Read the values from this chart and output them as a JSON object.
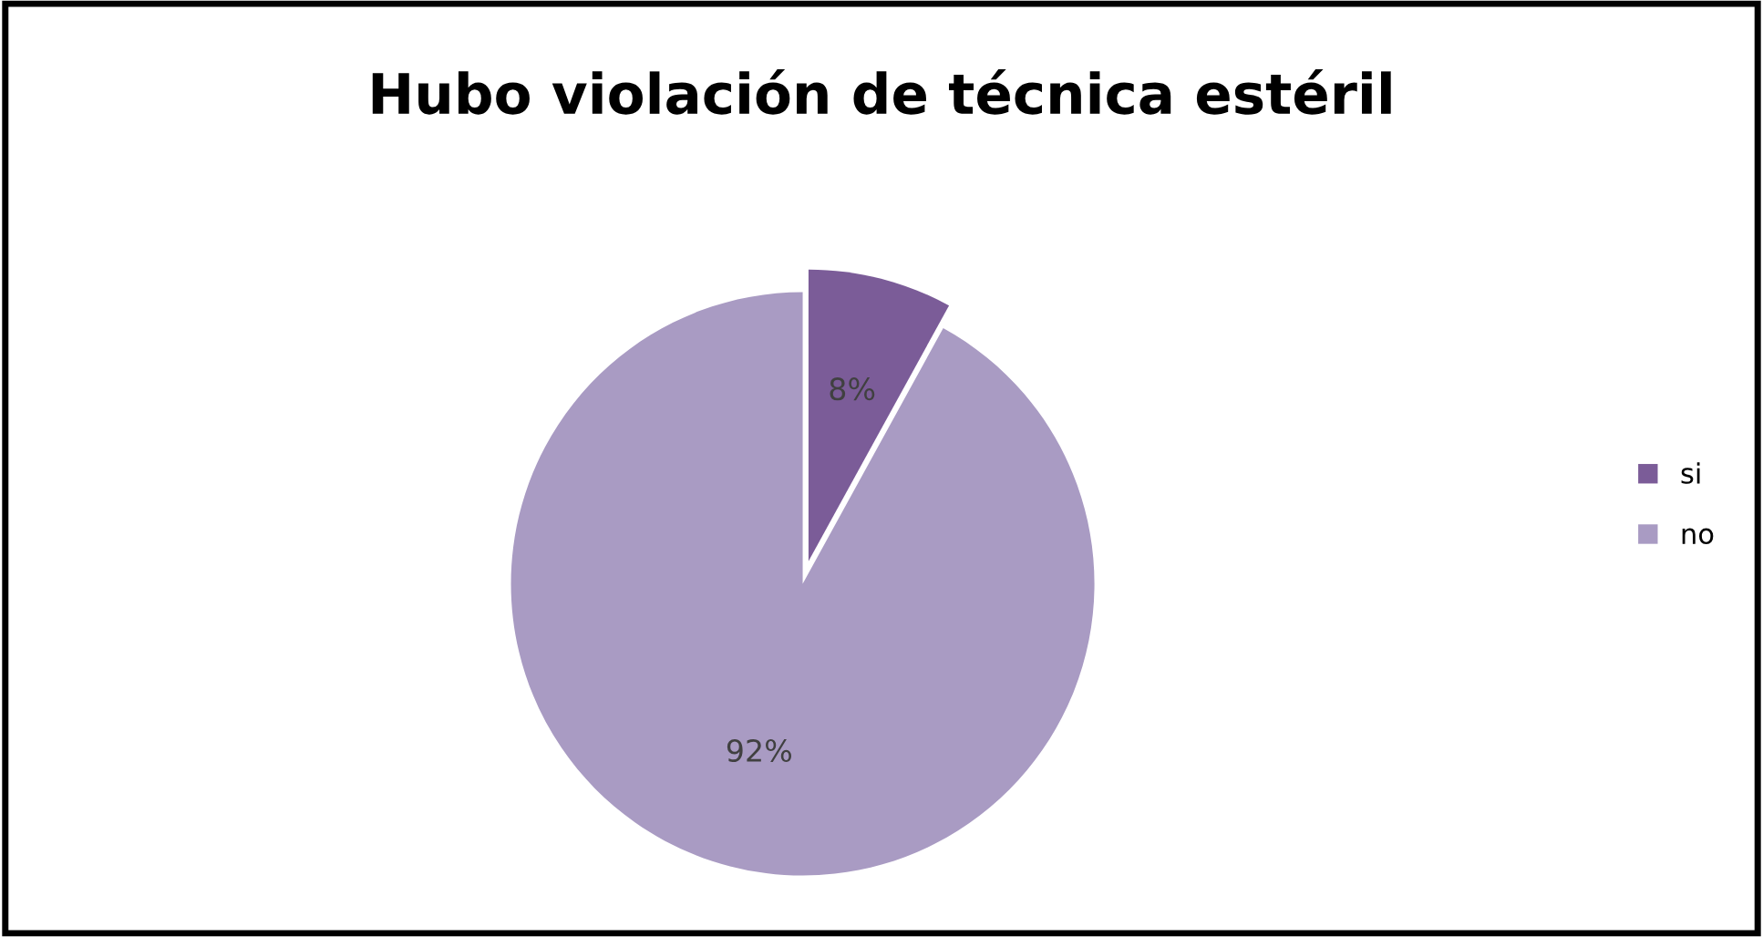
{
  "chart_data": {
    "type": "pie",
    "title": "Hubo violación de técnica estéril",
    "categories": [
      "si",
      "no"
    ],
    "values": [
      8,
      92
    ],
    "value_labels": [
      "8%",
      "92%"
    ],
    "colors": [
      "#7b5c98",
      "#a99bc3"
    ],
    "legend": "right"
  }
}
